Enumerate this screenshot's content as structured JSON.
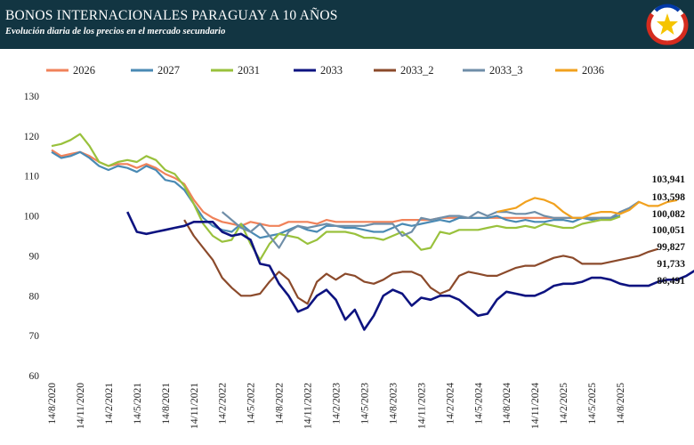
{
  "header": {
    "title": "BONOS INTERNACIONALES PARAGUAY A 10 AÑOS",
    "subtitle": "Evolución diaria de los precios en el mercado secundario",
    "emblem_icon": "paraguay-star-emblem-icon"
  },
  "chart_data": {
    "type": "line",
    "title": "BONOS INTERNACIONALES PARAGUAY A 10 AÑOS",
    "subtitle": "Evolución diaria de los precios en el mercado secundario",
    "xlabel": "",
    "ylabel": "",
    "ylim": [
      60,
      130
    ],
    "yticks": [
      60,
      70,
      80,
      90,
      100,
      110,
      120,
      130
    ],
    "x_tick_labels": [
      "14/8/2020",
      "14/11/2020",
      "14/2/2021",
      "14/5/2021",
      "14/8/2021",
      "14/11/2021",
      "14/2/2022",
      "14/5/2022",
      "14/8/2022",
      "14/11/2022",
      "14/2/2023",
      "14/5/2023",
      "14/8/2023",
      "14/11/2023",
      "14/2/2024",
      "14/5/2024",
      "14/8/2024",
      "14/11/2024",
      "14/2/2025",
      "14/5/2025",
      "14/8/2025"
    ],
    "grid": false,
    "legend_position": "top",
    "end_labels": [
      "103,941",
      "103,598",
      "100,082",
      "100,051",
      "99,827",
      "91,733",
      "86,491"
    ],
    "series": [
      {
        "name": "2026",
        "color": "#f0825a",
        "start_index": 0,
        "values": [
          116.5,
          115,
          115.5,
          116,
          115,
          113.5,
          112.5,
          113,
          113,
          112,
          113,
          112,
          110.5,
          109.5,
          108,
          104,
          101,
          99.5,
          98.5,
          98,
          97.5,
          98.5,
          98,
          97.5,
          97.5,
          98.5,
          98.5,
          98.5,
          98,
          99,
          98.5,
          98.5,
          98.5,
          98.5,
          98.5,
          98.5,
          98.5,
          99,
          99,
          99,
          99,
          99.5,
          99.5,
          99.5,
          99.5,
          99.5,
          99.5,
          99.5,
          99.5,
          99.5,
          99.5,
          99.5,
          99.5,
          99.5,
          99.5,
          99.5,
          99.5,
          99.5,
          99.5,
          99.5,
          100.05
        ]
      },
      {
        "name": "2027",
        "color": "#4a8ab4",
        "start_index": 0,
        "values": [
          116,
          114.5,
          115,
          116,
          114.5,
          112.5,
          111.5,
          112.5,
          112,
          111,
          112.5,
          111.5,
          109,
          108.5,
          106.5,
          103,
          99.5,
          97.5,
          96.5,
          96,
          98,
          96,
          94.5,
          95,
          95.5,
          96.5,
          97.5,
          96.5,
          96,
          97.5,
          97.5,
          97,
          97,
          96.5,
          96,
          96,
          97,
          98,
          97.5,
          98,
          98.5,
          99,
          98.5,
          99.5,
          99.5,
          99.5,
          99.5,
          100,
          99,
          98.5,
          99,
          98.5,
          98.5,
          99,
          99,
          98.5,
          99.5,
          99,
          99.5,
          99.5,
          100.08
        ]
      },
      {
        "name": "2031",
        "color": "#99c13c",
        "start_index": 0,
        "values": [
          117.5,
          118,
          119,
          120.5,
          117.5,
          113.5,
          112.5,
          113.5,
          114,
          113.5,
          115,
          114,
          111.5,
          110.5,
          107.5,
          103,
          98,
          95,
          93.5,
          94,
          98,
          93,
          89,
          93,
          95.5,
          95,
          94.5,
          93,
          94,
          96,
          96,
          96,
          95.5,
          94.5,
          94.5,
          94,
          95,
          96,
          94,
          91.5,
          92,
          96,
          95.5,
          96.5,
          96.5,
          96.5,
          97,
          97.5,
          97,
          97,
          97.5,
          97,
          98,
          97.5,
          97,
          97,
          98,
          98.5,
          99,
          99,
          99.83
        ]
      },
      {
        "name": "2033",
        "color": "#0d1380",
        "start_index": 8,
        "values": [
          101,
          96,
          95.5,
          96,
          96.5,
          97,
          97.5,
          98.5,
          98.5,
          98.5,
          96,
          95,
          95.5,
          94,
          88,
          87.5,
          83,
          80,
          76,
          77,
          80,
          81.5,
          79,
          74,
          76.5,
          71.5,
          75,
          80,
          81.5,
          80.5,
          77.5,
          79.5,
          79,
          80,
          80,
          79,
          77,
          75,
          75.5,
          79,
          81,
          80.5,
          80,
          80,
          81,
          82.5,
          83,
          83,
          83.5,
          84.5,
          84.5,
          84,
          83,
          82.5,
          82.5,
          82.5,
          83.5,
          84,
          84,
          85,
          86.49
        ]
      },
      {
        "name": "2033_2",
        "color": "#8b4a2b",
        "start_index": 14,
        "values": [
          99,
          95,
          92,
          89,
          84.5,
          82,
          80,
          80,
          80.5,
          83.5,
          86,
          84,
          79.5,
          78,
          83.5,
          85.5,
          84,
          85.5,
          85,
          83.5,
          83,
          84,
          85.5,
          86,
          86,
          85,
          82,
          80.5,
          81.5,
          85,
          86,
          85.5,
          85,
          85,
          86,
          87,
          87.5,
          87.5,
          88.5,
          89.5,
          90,
          89.5,
          88,
          88,
          88,
          88.5,
          89,
          89.5,
          90,
          91,
          91.73
        ]
      },
      {
        "name": "2033_3",
        "color": "#6f8ea8",
        "start_index": 18,
        "values": [
          101,
          99,
          97,
          96,
          98,
          95,
          92,
          96,
          97.5,
          97,
          97.5,
          98,
          97.5,
          97.5,
          97.5,
          97.5,
          98,
          98,
          98,
          95,
          96,
          99.5,
          99,
          99.5,
          100,
          100,
          99.5,
          101,
          100,
          101,
          101,
          100.5,
          100.5,
          101,
          100,
          99.5,
          99.5,
          99.5,
          99.5,
          99.5,
          99.5,
          99.5,
          101,
          102,
          103.6
        ]
      },
      {
        "name": "2036",
        "color": "#f1a11e",
        "start_index": 47,
        "values": [
          101,
          101.5,
          102,
          103.5,
          104.5,
          104,
          103,
          101,
          99.5,
          99.5,
          100.5,
          101,
          101,
          100.5,
          101.5,
          103.5,
          102.5,
          102.5,
          103.5,
          103.94
        ]
      }
    ]
  }
}
